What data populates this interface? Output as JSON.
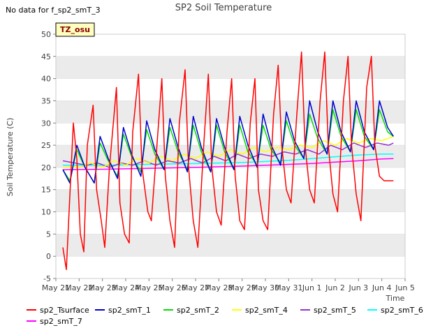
{
  "chart_data": {
    "type": "line",
    "title": "SP2 Soil Temperature",
    "note": "No data for f_sp2_smT_3",
    "badge": "TZ_osu",
    "xlabel": "Time",
    "ylabel": "Soil Temperature (C)",
    "ylim": [
      -5,
      50
    ],
    "yticks": [
      -5,
      0,
      5,
      10,
      15,
      20,
      25,
      30,
      35,
      40,
      45,
      50
    ],
    "xlim": [
      0,
      15
    ],
    "xticks": [
      "May 21",
      "May 22",
      "May 23",
      "May 24",
      "May 25",
      "May 26",
      "May 27",
      "May 28",
      "May 29",
      "May 30",
      "May 31",
      "Jun 1",
      "Jun 2",
      "Jun 3",
      "Jun 4",
      "Jun 5"
    ],
    "grid": "horizontal bands",
    "legend_position": "bottom",
    "series": [
      {
        "name": "sp2_Tsurface",
        "color": "#ff0000",
        "x": [
          0.3,
          0.45,
          0.55,
          0.75,
          0.9,
          1.05,
          1.2,
          1.35,
          1.6,
          1.75,
          1.95,
          2.1,
          2.3,
          2.6,
          2.75,
          2.95,
          3.15,
          3.3,
          3.55,
          3.7,
          3.95,
          4.1,
          4.3,
          4.55,
          4.7,
          4.9,
          5.1,
          5.3,
          5.55,
          5.7,
          5.9,
          6.1,
          6.35,
          6.55,
          6.7,
          6.9,
          7.1,
          7.35,
          7.55,
          7.7,
          7.9,
          8.1,
          8.35,
          8.55,
          8.7,
          8.9,
          9.1,
          9.35,
          9.55,
          9.7,
          9.9,
          10.1,
          10.35,
          10.55,
          10.7,
          10.9,
          11.1,
          11.35,
          11.55,
          11.7,
          11.9,
          12.1,
          12.35,
          12.55,
          12.7,
          12.9,
          13.1,
          13.35,
          13.55,
          13.7,
          13.9,
          14.1,
          14.35,
          14.5
        ],
        "y": [
          2,
          -3,
          8,
          30,
          22,
          5,
          1,
          25,
          34,
          15,
          8,
          2,
          20,
          38,
          12,
          5,
          3,
          28,
          41,
          20,
          10,
          8,
          22,
          40,
          18,
          8,
          2,
          30,
          42,
          20,
          8,
          2,
          25,
          41,
          20,
          10,
          7,
          28,
          40,
          18,
          8,
          6,
          30,
          40,
          15,
          8,
          6,
          32,
          43,
          25,
          15,
          12,
          32,
          46,
          25,
          15,
          12,
          35,
          46,
          25,
          14,
          10,
          35,
          45,
          25,
          14,
          8,
          38,
          45,
          25,
          18,
          17,
          17,
          17
        ]
      },
      {
        "name": "sp2_smT_1",
        "color": "#0000cc",
        "x": [
          0.3,
          0.6,
          0.9,
          1.25,
          1.65,
          1.9,
          2.25,
          2.65,
          2.9,
          3.25,
          3.65,
          3.9,
          4.25,
          4.65,
          4.9,
          5.25,
          5.65,
          5.9,
          6.25,
          6.65,
          6.9,
          7.25,
          7.65,
          7.9,
          8.25,
          8.65,
          8.9,
          9.25,
          9.65,
          9.9,
          10.25,
          10.65,
          10.9,
          11.25,
          11.65,
          11.9,
          12.25,
          12.65,
          12.9,
          13.25,
          13.65,
          13.9,
          14.25,
          14.5
        ],
        "y": [
          19.5,
          16.5,
          25,
          20,
          16.5,
          27,
          22,
          17.5,
          29,
          23,
          18,
          30.5,
          24,
          19.5,
          31,
          24.5,
          19,
          31.5,
          24.5,
          19,
          31,
          24.5,
          19.5,
          31.5,
          25,
          20,
          32,
          25,
          20.5,
          32.5,
          26,
          22,
          35,
          28,
          23,
          35,
          28,
          23.5,
          35,
          28,
          24,
          35,
          29,
          27
        ]
      },
      {
        "name": "sp2_smT_2",
        "color": "#00dd00",
        "x": [
          0.3,
          0.6,
          0.9,
          1.25,
          1.65,
          1.9,
          2.25,
          2.65,
          2.9,
          3.25,
          3.65,
          3.9,
          4.25,
          4.65,
          4.9,
          5.25,
          5.65,
          5.9,
          6.25,
          6.65,
          6.9,
          7.25,
          7.65,
          7.9,
          8.25,
          8.65,
          8.9,
          9.25,
          9.65,
          9.9,
          10.25,
          10.65,
          10.9,
          11.25,
          11.65,
          11.9,
          12.25,
          12.65,
          12.9,
          13.25,
          13.65,
          13.9,
          14.25,
          14.5
        ],
        "y": [
          19.5,
          17,
          24,
          20,
          16.5,
          25.5,
          21.5,
          18,
          27.5,
          22.5,
          19,
          28.5,
          23,
          19.5,
          29,
          23.5,
          19.5,
          29.5,
          23.5,
          19,
          29.5,
          23.5,
          19.5,
          29.5,
          23.5,
          20.5,
          29.5,
          24,
          21,
          30.5,
          25,
          22,
          32,
          26.5,
          23,
          33,
          27,
          23.5,
          33,
          27,
          24,
          33,
          28,
          27
        ]
      },
      {
        "name": "sp2_smT_4",
        "color": "#ffff00",
        "x": [
          0.3,
          1.0,
          1.5,
          2.0,
          2.5,
          3.0,
          3.5,
          4.0,
          4.5,
          5.0,
          5.5,
          6.0,
          6.5,
          7.0,
          7.5,
          8.0,
          8.5,
          9.0,
          9.5,
          10.0,
          10.5,
          11.0,
          11.5,
          12.0,
          12.5,
          13.0,
          13.5,
          14.0,
          14.5
        ],
        "y": [
          20,
          20,
          21,
          20,
          21.5,
          20.5,
          22,
          21,
          22.5,
          21.5,
          23,
          22,
          23.5,
          22.5,
          24,
          23,
          24.5,
          23.5,
          24.5,
          24,
          25,
          24.5,
          26,
          25,
          26.5,
          25.5,
          26.5,
          26,
          27
        ]
      },
      {
        "name": "sp2_smT_5",
        "color": "#9932cc",
        "x": [
          0.3,
          0.8,
          1.3,
          1.8,
          2.3,
          2.8,
          3.3,
          3.8,
          4.3,
          4.8,
          5.3,
          5.8,
          6.3,
          6.8,
          7.3,
          7.8,
          8.3,
          8.8,
          9.3,
          9.8,
          10.3,
          10.8,
          11.3,
          11.8,
          12.3,
          12.8,
          13.3,
          13.8,
          14.3,
          14.5
        ],
        "y": [
          21.5,
          21,
          20.5,
          21,
          20,
          21,
          20.5,
          21.5,
          20.5,
          21.5,
          21,
          22,
          21,
          22.5,
          21.5,
          23,
          22,
          23,
          22.5,
          23.5,
          23,
          24,
          23,
          25,
          24,
          25.5,
          24.5,
          25.5,
          25,
          25.5
        ]
      },
      {
        "name": "sp2_smT_6",
        "color": "#00ffff",
        "x": [
          0.3,
          2,
          4,
          6,
          8,
          10,
          11,
          12,
          13,
          14,
          14.5
        ],
        "y": [
          20.5,
          20.5,
          20.7,
          20.9,
          21.1,
          21.6,
          22,
          22.4,
          22.8,
          23,
          23
        ]
      },
      {
        "name": "sp2_smT_7",
        "color": "#ff00ff",
        "x": [
          0.3,
          2,
          4,
          6,
          8,
          10,
          11,
          12,
          13,
          14,
          14.5
        ],
        "y": [
          19.5,
          19.6,
          19.8,
          20,
          20.3,
          20.7,
          20.9,
          21.2,
          21.5,
          21.9,
          22
        ]
      }
    ]
  }
}
